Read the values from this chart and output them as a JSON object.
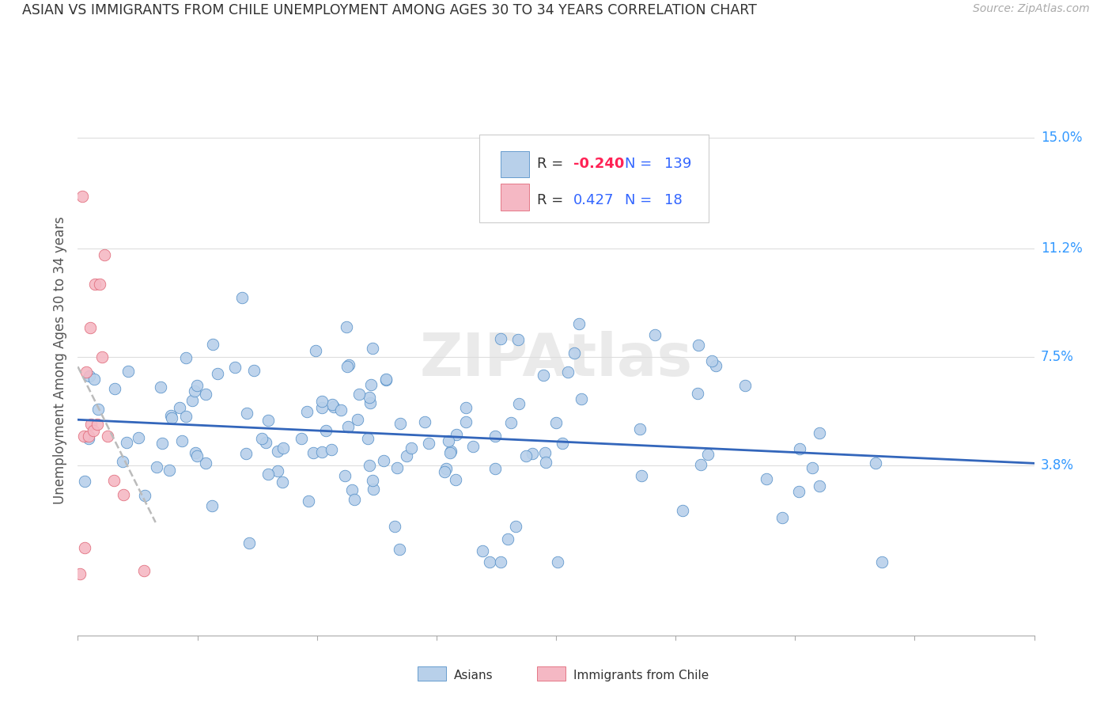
{
  "title": "ASIAN VS IMMIGRANTS FROM CHILE UNEMPLOYMENT AMONG AGES 30 TO 34 YEARS CORRELATION CHART",
  "source": "Source: ZipAtlas.com",
  "ylabel": "Unemployment Among Ages 30 to 34 years",
  "xlim": [
    0.0,
    0.8
  ],
  "ylim": [
    -0.02,
    0.168
  ],
  "ytick_vals": [
    0.038,
    0.075,
    0.112,
    0.15
  ],
  "ytick_labels": [
    "3.8%",
    "7.5%",
    "11.2%",
    "15.0%"
  ],
  "blue_fill": "#b8d0ea",
  "blue_edge": "#5590c8",
  "pink_fill": "#f5b8c4",
  "pink_edge": "#e06878",
  "trend_blue": "#3366bb",
  "trend_pink_dash": "#bbbbbb",
  "r_blue": "-0.240",
  "n_blue": "139",
  "r_pink": "0.427",
  "n_pink": "18",
  "watermark": "ZIPAtlas"
}
